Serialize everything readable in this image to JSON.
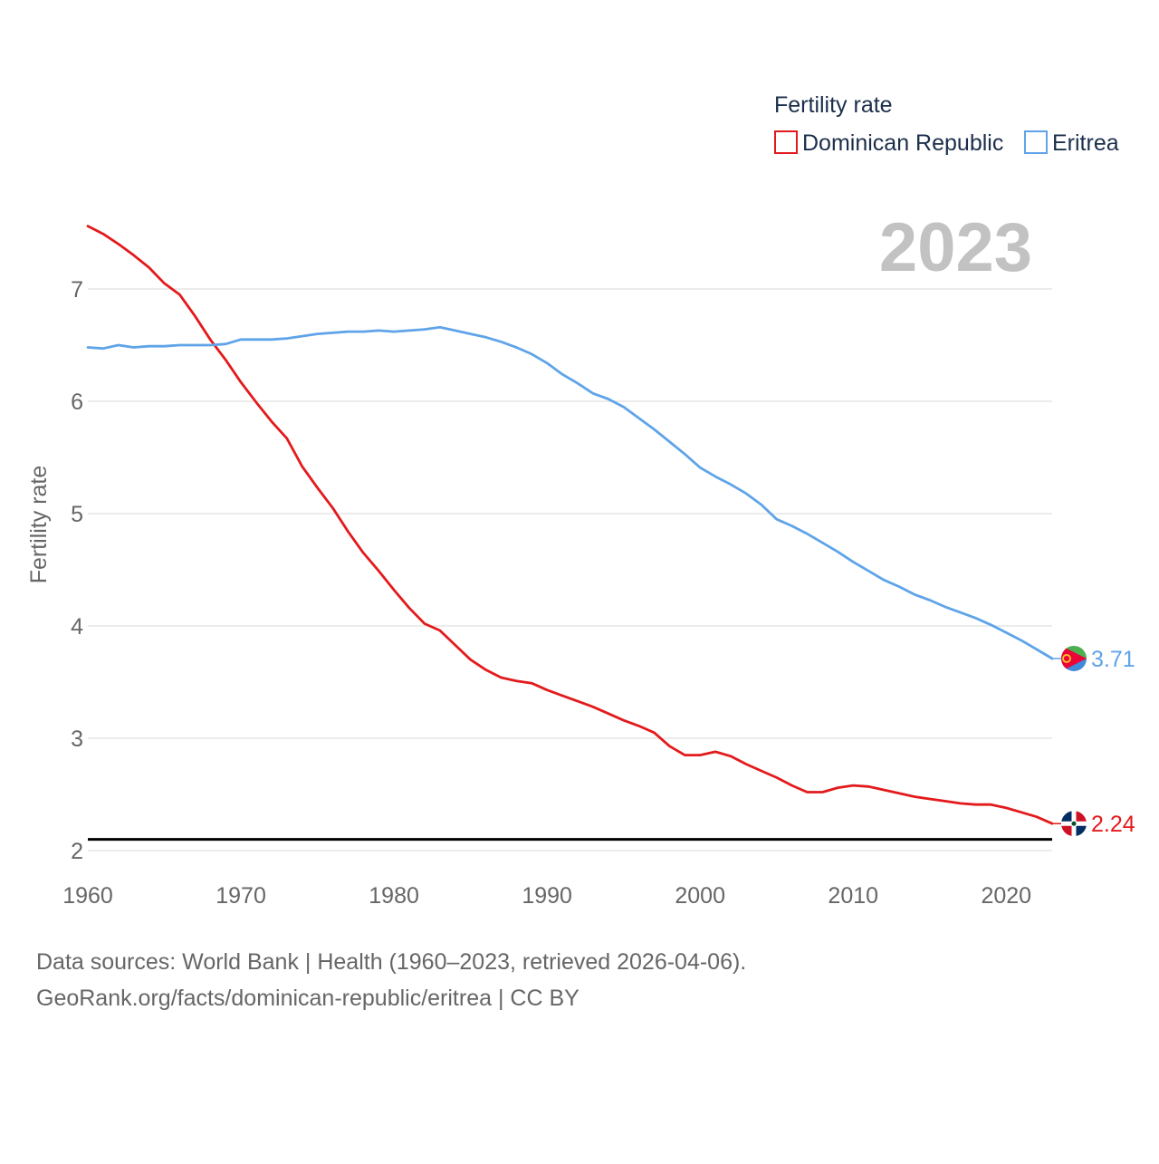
{
  "chart_data": {
    "type": "line",
    "year_label": "2023",
    "ylabel": "Fertility rate",
    "xlabel": "",
    "xlim": [
      1960,
      2023
    ],
    "ylim": [
      2,
      7.6
    ],
    "x_ticks": [
      1960,
      1970,
      1980,
      1990,
      2000,
      2010,
      2020
    ],
    "y_ticks": [
      2,
      3,
      4,
      5,
      6,
      7
    ],
    "reference_line": {
      "value": 2.1,
      "color": "#000000"
    },
    "legend": {
      "title": "Fertility rate",
      "placement": "top-right"
    },
    "x": [
      1960,
      1961,
      1962,
      1963,
      1964,
      1965,
      1966,
      1967,
      1968,
      1969,
      1970,
      1971,
      1972,
      1973,
      1974,
      1975,
      1976,
      1977,
      1978,
      1979,
      1980,
      1981,
      1982,
      1983,
      1984,
      1985,
      1986,
      1987,
      1988,
      1989,
      1990,
      1991,
      1992,
      1993,
      1994,
      1995,
      1996,
      1997,
      1998,
      1999,
      2000,
      2001,
      2002,
      2003,
      2004,
      2005,
      2006,
      2007,
      2008,
      2009,
      2010,
      2011,
      2012,
      2013,
      2014,
      2015,
      2016,
      2017,
      2018,
      2019,
      2020,
      2021,
      2022,
      2023
    ],
    "series": [
      {
        "name": "Dominican Republic",
        "color": "#e31a1c",
        "end_label": "2.24",
        "flag_icon": "dominican-republic-flag-icon",
        "values": [
          7.56,
          7.49,
          7.4,
          7.3,
          7.19,
          7.05,
          6.95,
          6.76,
          6.55,
          6.37,
          6.17,
          5.99,
          5.82,
          5.67,
          5.42,
          5.23,
          5.05,
          4.84,
          4.65,
          4.49,
          4.32,
          4.16,
          4.02,
          3.96,
          3.83,
          3.7,
          3.61,
          3.54,
          3.51,
          3.49,
          3.43,
          3.38,
          3.33,
          3.28,
          3.22,
          3.16,
          3.11,
          3.05,
          2.93,
          2.85,
          2.85,
          2.88,
          2.84,
          2.77,
          2.71,
          2.65,
          2.58,
          2.52,
          2.52,
          2.56,
          2.58,
          2.57,
          2.54,
          2.51,
          2.48,
          2.46,
          2.44,
          2.42,
          2.41,
          2.41,
          2.38,
          2.34,
          2.3,
          2.24
        ]
      },
      {
        "name": "Eritrea",
        "color": "#5fa4e8",
        "end_label": "3.71",
        "flag_icon": "eritrea-flag-icon",
        "values": [
          6.48,
          6.47,
          6.5,
          6.48,
          6.49,
          6.49,
          6.5,
          6.5,
          6.5,
          6.51,
          6.55,
          6.55,
          6.55,
          6.56,
          6.58,
          6.6,
          6.61,
          6.62,
          6.62,
          6.63,
          6.62,
          6.63,
          6.64,
          6.66,
          6.63,
          6.6,
          6.57,
          6.53,
          6.48,
          6.42,
          6.34,
          6.24,
          6.16,
          6.07,
          6.02,
          5.95,
          5.85,
          5.75,
          5.64,
          5.53,
          5.41,
          5.33,
          5.26,
          5.18,
          5.08,
          4.95,
          4.89,
          4.82,
          4.74,
          4.66,
          4.57,
          4.49,
          4.41,
          4.35,
          4.28,
          4.23,
          4.17,
          4.12,
          4.07,
          4.01,
          3.94,
          3.87,
          3.79,
          3.71
        ]
      }
    ]
  },
  "footer": {
    "sources": "Data sources: World Bank | Health (1960–2023, retrieved 2026-04-06).",
    "credit": "GeoRank.org/facts/dominican-republic/eritrea | CC BY"
  }
}
